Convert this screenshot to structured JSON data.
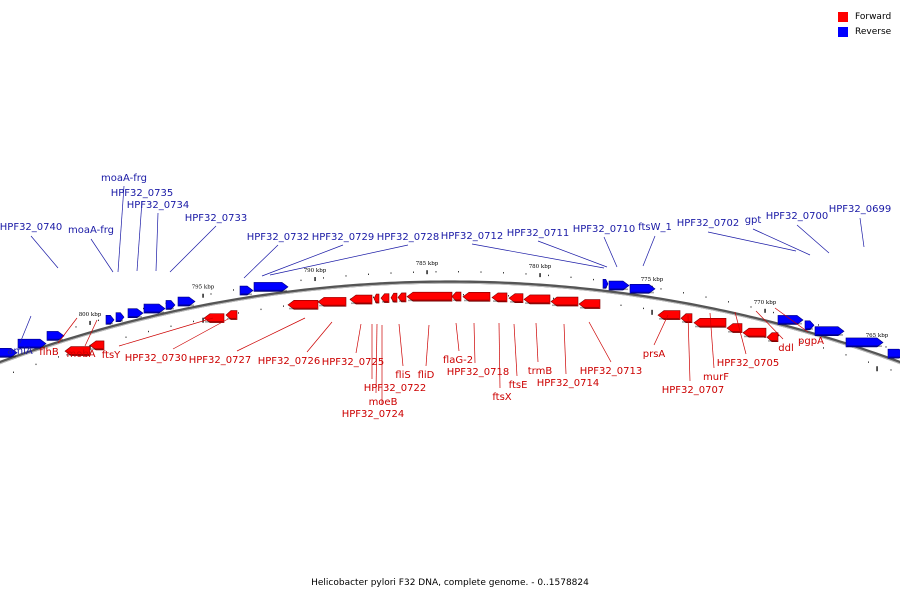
{
  "legend": {
    "forward_label": "Forward",
    "reverse_label": "Reverse",
    "forward_color": "#ff0000",
    "reverse_color": "#0000ff"
  },
  "caption": "Helicobacter pylori F32 DNA, complete genome. - 0..1578824",
  "ticks": [
    "800 kbp",
    "795 kbp",
    "790 kbp",
    "785 kbp",
    "780 kbp",
    "775 kbp",
    "770 kbp",
    "765 kbp"
  ],
  "reverse_genes": [
    "HPF32_0740",
    "moaA-frg",
    "moaA-frg",
    "HPF32_0735",
    "HPF32_0734",
    "HPF32_0733",
    "HPF32_0732",
    "HPF32_0729",
    "HPF32_0728",
    "HPF32_0712",
    "HPF32_0711",
    "HPF32_0710",
    "ftsW_1",
    "HPF32_0702",
    "gpt",
    "HPF32_0700",
    "HPF32_0699",
    "amiA"
  ],
  "forward_genes": [
    "flhB",
    "mobA",
    "ftsY",
    "HPF32_0730",
    "HPF32_0727",
    "HPF32_0726",
    "HPF32_0725",
    "HPF32_0722",
    "moeB",
    "HPF32_0724",
    "fliS",
    "fliD",
    "flaG-2",
    "HPF32_0718",
    "ftsX",
    "ftsE",
    "trmB",
    "HPF32_0714",
    "HPF32_0713",
    "prsA",
    "HPF32_0707",
    "murF",
    "HPF32_0705",
    "ddl",
    "pgpA"
  ]
}
